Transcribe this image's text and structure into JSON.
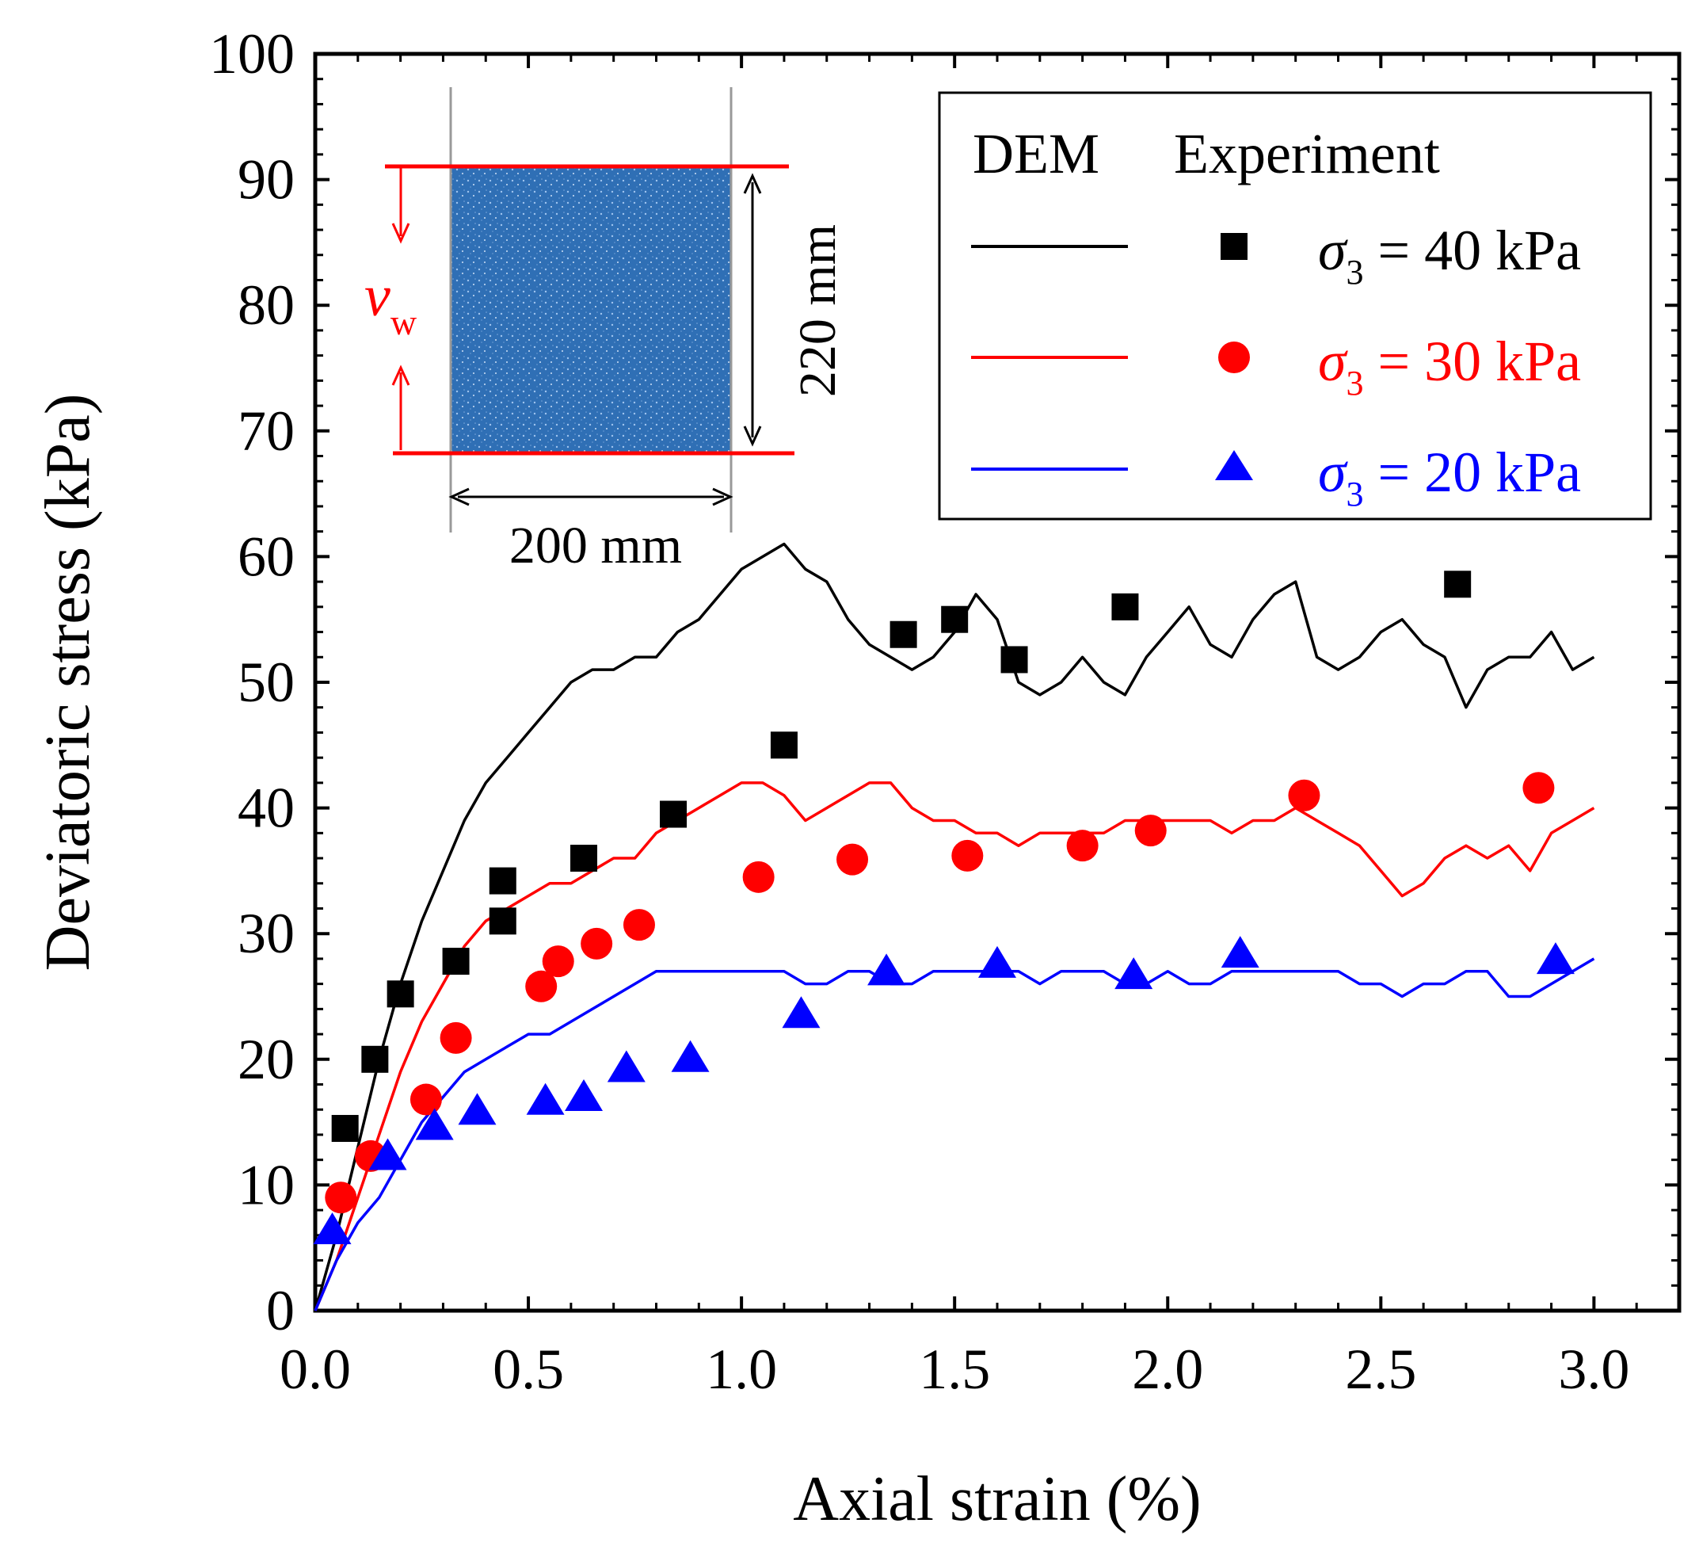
{
  "chart_data": {
    "type": "line",
    "title": "",
    "xlabel": "Axial strain (%)",
    "ylabel": "Deviatoric stress (kPa)",
    "xlim": [
      0.0,
      3.2
    ],
    "ylim": [
      0,
      100
    ],
    "x_ticks": [
      0.0,
      0.5,
      1.0,
      1.5,
      2.0,
      2.5,
      3.0
    ],
    "x_tick_labels": [
      "0.0",
      "0.5",
      "1.0",
      "1.5",
      "2.0",
      "2.5",
      "3.0"
    ],
    "y_ticks": [
      0,
      10,
      20,
      30,
      40,
      50,
      60,
      70,
      80,
      90,
      100
    ],
    "y_tick_labels": [
      "0",
      "10",
      "20",
      "30",
      "40",
      "50",
      "60",
      "70",
      "80",
      "90",
      "100"
    ],
    "grid": false,
    "legend": {
      "position": "top-right",
      "header_dem": "DEM",
      "header_experiment": "Experiment",
      "entries": [
        {
          "symbol": "σ",
          "subscript": "3",
          "rest": " = 40 kPa",
          "color": "#000000",
          "marker": "square"
        },
        {
          "symbol": "σ",
          "subscript": "3",
          "rest": " = 30 kPa",
          "color": "#ff0000",
          "marker": "circle"
        },
        {
          "symbol": "σ",
          "subscript": "3",
          "rest": " = 20 kPa",
          "color": "#0000ff",
          "marker": "triangle"
        }
      ]
    },
    "inset": {
      "width_label": "200 mm",
      "height_label": "220 mm",
      "velocity_symbol": "v",
      "velocity_subscript": "w",
      "specimen_color": "#2f6fb5",
      "platen_color": "#ff0000"
    },
    "dem_series": [
      {
        "name": "DEM σ3 = 40 kPa",
        "color": "#000000",
        "x": [
          0.0,
          0.05,
          0.1,
          0.15,
          0.2,
          0.25,
          0.3,
          0.35,
          0.4,
          0.45,
          0.5,
          0.55,
          0.6,
          0.65,
          0.7,
          0.75,
          0.8,
          0.85,
          0.9,
          0.95,
          1.0,
          1.05,
          1.1,
          1.15,
          1.2,
          1.25,
          1.3,
          1.35,
          1.4,
          1.45,
          1.5,
          1.55,
          1.6,
          1.65,
          1.7,
          1.75,
          1.8,
          1.85,
          1.9,
          1.95,
          2.0,
          2.05,
          2.1,
          2.15,
          2.2,
          2.25,
          2.3,
          2.35,
          2.4,
          2.45,
          2.5,
          2.55,
          2.6,
          2.65,
          2.7,
          2.75,
          2.8,
          2.85,
          2.9,
          2.95,
          3.0
        ],
        "y": [
          0,
          6,
          13,
          20,
          26,
          31,
          35,
          39,
          42,
          44,
          46,
          48,
          50,
          51,
          51,
          52,
          52,
          54,
          55,
          57,
          59,
          60,
          61,
          59,
          58,
          55,
          53,
          52,
          51,
          52,
          54,
          57,
          55,
          50,
          49,
          50,
          52,
          50,
          49,
          52,
          54,
          56,
          53,
          52,
          55,
          57,
          58,
          52,
          51,
          52,
          54,
          55,
          53,
          52,
          48,
          51,
          52,
          52,
          54,
          51,
          52
        ]
      },
      {
        "name": "DEM σ3 = 30 kPa",
        "color": "#ff0000",
        "x": [
          0.0,
          0.05,
          0.1,
          0.15,
          0.2,
          0.25,
          0.3,
          0.35,
          0.4,
          0.45,
          0.5,
          0.55,
          0.6,
          0.65,
          0.7,
          0.75,
          0.8,
          0.85,
          0.9,
          0.95,
          1.0,
          1.05,
          1.1,
          1.15,
          1.2,
          1.25,
          1.3,
          1.35,
          1.4,
          1.45,
          1.5,
          1.55,
          1.6,
          1.65,
          1.7,
          1.75,
          1.8,
          1.85,
          1.9,
          1.95,
          2.0,
          2.05,
          2.1,
          2.15,
          2.2,
          2.25,
          2.3,
          2.35,
          2.4,
          2.45,
          2.5,
          2.55,
          2.6,
          2.65,
          2.7,
          2.75,
          2.8,
          2.85,
          2.9,
          2.95,
          3.0
        ],
        "y": [
          0,
          4,
          9,
          14,
          19,
          23,
          26,
          29,
          31,
          32,
          33,
          34,
          34,
          35,
          36,
          36,
          38,
          39,
          40,
          41,
          42,
          42,
          41,
          39,
          40,
          41,
          42,
          42,
          40,
          39,
          39,
          38,
          38,
          37,
          38,
          38,
          38,
          38,
          39,
          39,
          39,
          39,
          39,
          38,
          39,
          39,
          40,
          39,
          38,
          37,
          35,
          33,
          34,
          36,
          37,
          36,
          37,
          35,
          38,
          39,
          40
        ]
      },
      {
        "name": "DEM σ3 = 20 kPa",
        "color": "#0000ff",
        "x": [
          0.0,
          0.05,
          0.1,
          0.15,
          0.2,
          0.25,
          0.3,
          0.35,
          0.4,
          0.45,
          0.5,
          0.55,
          0.6,
          0.65,
          0.7,
          0.75,
          0.8,
          0.85,
          0.9,
          0.95,
          1.0,
          1.05,
          1.1,
          1.15,
          1.2,
          1.25,
          1.3,
          1.35,
          1.4,
          1.45,
          1.5,
          1.55,
          1.6,
          1.65,
          1.7,
          1.75,
          1.8,
          1.85,
          1.9,
          1.95,
          2.0,
          2.05,
          2.1,
          2.15,
          2.2,
          2.25,
          2.3,
          2.35,
          2.4,
          2.45,
          2.5,
          2.55,
          2.6,
          2.65,
          2.7,
          2.75,
          2.8,
          2.85,
          2.9,
          2.95,
          3.0
        ],
        "y": [
          0,
          4,
          7,
          9,
          12,
          15,
          17,
          19,
          20,
          21,
          22,
          22,
          23,
          24,
          25,
          26,
          27,
          27,
          27,
          27,
          27,
          27,
          27,
          26,
          26,
          27,
          27,
          26,
          26,
          27,
          27,
          27,
          27,
          27,
          26,
          27,
          27,
          27,
          26,
          26,
          27,
          26,
          26,
          27,
          27,
          27,
          27,
          27,
          27,
          26,
          26,
          25,
          26,
          26,
          27,
          27,
          25,
          25,
          26,
          27,
          28
        ]
      }
    ],
    "experiment_series": [
      {
        "name": "Experiment σ3 = 40 kPa",
        "color": "#000000",
        "marker": "square",
        "x": [
          0.07,
          0.14,
          0.2,
          0.33,
          0.44,
          0.44,
          0.63,
          0.84,
          1.1,
          1.38,
          1.5,
          1.64,
          1.9,
          2.68
        ],
        "y": [
          14.5,
          20,
          25.2,
          27.8,
          31,
          34.2,
          36,
          39.5,
          45,
          53.8,
          55,
          51.8,
          56,
          57.8
        ]
      },
      {
        "name": "Experiment σ3 = 30 kPa",
        "color": "#ff0000",
        "marker": "circle",
        "x": [
          0.06,
          0.13,
          0.26,
          0.33,
          0.53,
          0.57,
          0.66,
          0.76,
          1.04,
          1.26,
          1.53,
          1.8,
          1.96,
          2.32,
          2.87
        ],
        "y": [
          9,
          12.3,
          16.8,
          21.7,
          25.8,
          27.8,
          29.2,
          30.7,
          34.5,
          35.9,
          36.2,
          37,
          38.2,
          41,
          41.6
        ]
      },
      {
        "name": "Experiment σ3 = 20 kPa",
        "color": "#0000ff",
        "marker": "triangle",
        "x": [
          0.04,
          0.17,
          0.28,
          0.38,
          0.54,
          0.63,
          0.73,
          0.88,
          1.14,
          1.34,
          1.6,
          1.92,
          2.17,
          2.91
        ],
        "y": [
          6.3,
          12.2,
          14.6,
          15.8,
          16.6,
          16.9,
          19.2,
          20,
          23.5,
          26.9,
          27.5,
          26.6,
          28.3,
          27.8
        ]
      }
    ]
  }
}
